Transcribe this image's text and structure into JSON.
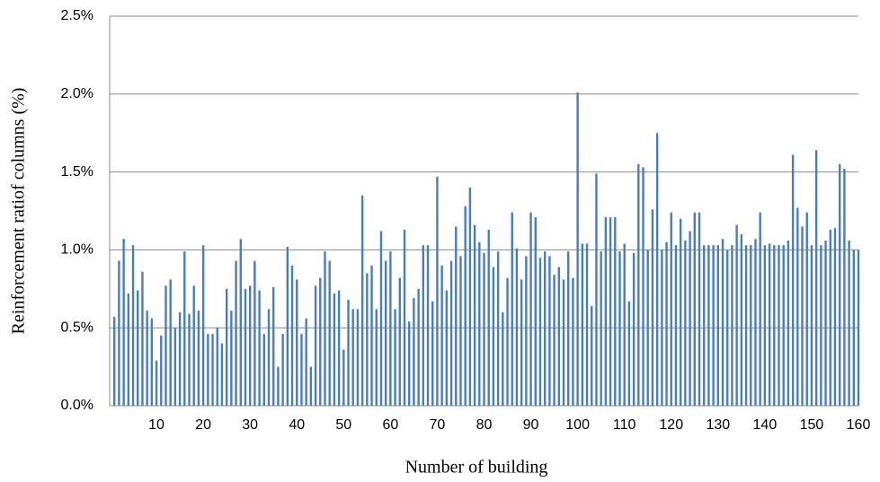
{
  "chart_data": {
    "type": "bar",
    "x_label": "Number  of building",
    "y_label": "Reinforcement  ratiof  columns  (%)",
    "x": [
      1,
      2,
      3,
      4,
      5,
      6,
      7,
      8,
      9,
      10,
      11,
      12,
      13,
      14,
      15,
      16,
      17,
      18,
      19,
      20,
      21,
      22,
      23,
      24,
      25,
      26,
      27,
      28,
      29,
      30,
      31,
      32,
      33,
      34,
      35,
      36,
      37,
      38,
      39,
      40,
      41,
      42,
      43,
      44,
      45,
      46,
      47,
      48,
      49,
      50,
      51,
      52,
      53,
      54,
      55,
      56,
      57,
      58,
      59,
      60,
      61,
      62,
      63,
      64,
      65,
      66,
      67,
      68,
      69,
      70,
      71,
      72,
      73,
      74,
      75,
      76,
      77,
      78,
      79,
      80,
      81,
      82,
      83,
      84,
      85,
      86,
      87,
      88,
      89,
      90,
      91,
      92,
      93,
      94,
      95,
      96,
      97,
      98,
      99,
      100,
      101,
      102,
      103,
      104,
      105,
      106,
      107,
      108,
      109,
      110,
      111,
      112,
      113,
      114,
      115,
      116,
      117,
      118,
      119,
      120,
      121,
      122,
      123,
      124,
      125,
      126,
      127,
      128,
      129,
      130,
      131,
      132,
      133,
      134,
      135,
      136,
      137,
      138,
      139,
      140,
      141,
      142,
      143,
      144,
      145,
      146,
      147,
      148,
      149,
      150,
      151,
      152,
      153,
      154,
      155,
      156,
      157,
      158,
      159,
      160
    ],
    "values": [
      0.57,
      0.93,
      1.07,
      0.72,
      1.03,
      0.74,
      0.86,
      0.61,
      0.56,
      0.29,
      0.45,
      0.77,
      0.81,
      0.5,
      0.6,
      0.99,
      0.59,
      0.77,
      0.61,
      1.03,
      0.46,
      0.46,
      0.5,
      0.4,
      0.75,
      0.61,
      0.93,
      1.07,
      0.75,
      0.77,
      0.93,
      0.74,
      0.46,
      0.62,
      0.76,
      0.25,
      0.46,
      1.02,
      0.9,
      0.81,
      0.46,
      0.56,
      0.25,
      0.77,
      0.82,
      0.99,
      0.93,
      0.72,
      0.74,
      0.36,
      0.68,
      0.62,
      0.62,
      1.35,
      0.85,
      0.9,
      0.62,
      1.12,
      0.93,
      0.99,
      0.62,
      0.82,
      1.13,
      0.54,
      0.69,
      0.75,
      1.03,
      1.03,
      0.67,
      1.47,
      0.9,
      0.74,
      0.93,
      1.15,
      0.96,
      1.28,
      1.4,
      1.16,
      1.05,
      0.98,
      1.13,
      0.89,
      0.99,
      0.6,
      0.82,
      1.24,
      1.01,
      0.81,
      0.96,
      1.24,
      1.21,
      0.95,
      0.99,
      0.96,
      0.84,
      0.89,
      0.81,
      0.99,
      0.82,
      2.01,
      1.04,
      1.04,
      0.64,
      1.49,
      0.99,
      1.21,
      1.21,
      1.21,
      0.99,
      1.04,
      0.67,
      0.98,
      1.55,
      1.53,
      1.0,
      1.26,
      1.75,
      1.0,
      1.05,
      1.24,
      1.03,
      1.2,
      1.06,
      1.12,
      1.24,
      1.24,
      1.03,
      1.03,
      1.03,
      1.03,
      1.07,
      1.0,
      1.03,
      1.16,
      1.1,
      1.03,
      1.03,
      1.07,
      1.24,
      1.03,
      1.04,
      1.03,
      1.03,
      1.03,
      1.06,
      1.61,
      1.27,
      1.15,
      1.24,
      1.03,
      1.64,
      1.03,
      1.06,
      1.13,
      1.14,
      1.55,
      1.52,
      1.06,
      1.0,
      1.0
    ],
    "color": "#4a7ebb",
    "xlim": [
      0,
      160
    ],
    "xticks": [
      10,
      20,
      30,
      40,
      50,
      60,
      70,
      80,
      90,
      100,
      110,
      120,
      130,
      140,
      150,
      160
    ],
    "ylim": [
      0,
      2.5
    ],
    "yticks": [
      {
        "value": 0,
        "label": "0.0%"
      },
      {
        "value": 0.5,
        "label": "0.5%"
      },
      {
        "value": 1,
        "label": "1.0%"
      },
      {
        "value": 1.5,
        "label": "1.5%"
      },
      {
        "value": 2,
        "label": "2.0%"
      },
      {
        "value": 2.5,
        "label": "2.5%"
      }
    ],
    "grid": true
  }
}
